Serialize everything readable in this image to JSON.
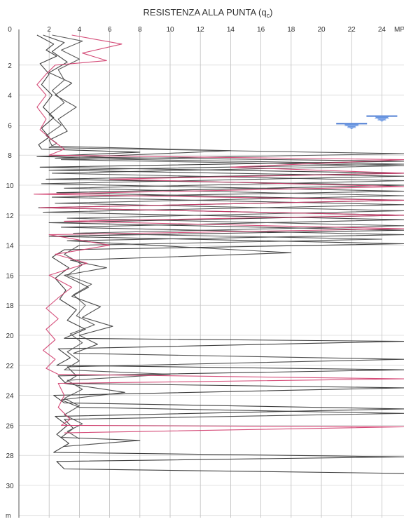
{
  "chart_data": {
    "type": "line",
    "title_main": "RESISTENZA ALLA PUNTA (q",
    "title_sub": "c",
    "title_close": ")",
    "x_unit_label": "MP",
    "y_unit_label": "m",
    "x_ticks": [
      "0",
      "2",
      "4",
      "6",
      "8",
      "10",
      "12",
      "14",
      "16",
      "18",
      "20",
      "22",
      "24"
    ],
    "y_ticks": [
      "2",
      "4",
      "6",
      "8",
      "10",
      "12",
      "14",
      "16",
      "18",
      "20",
      "22",
      "24",
      "26",
      "28",
      "30"
    ],
    "xlim": [
      0,
      25.8
    ],
    "ylim": [
      0,
      32
    ],
    "x_axis_position": "top",
    "y_axis_direction": "depth increasing downward",
    "grid": true,
    "water_table_depths_m": [
      {
        "x": 22,
        "depth": 5.9
      },
      {
        "x": 24,
        "depth": 5.4
      }
    ],
    "series": [
      {
        "color": "#2b2b2b",
        "points": [
          [
            1.2,
            0
          ],
          [
            2.3,
            0.6
          ],
          [
            1.8,
            1.0
          ],
          [
            2.5,
            1.4
          ],
          [
            1.4,
            1.9
          ],
          [
            2.0,
            2.6
          ],
          [
            1.5,
            3.3
          ],
          [
            2.2,
            4.0
          ],
          [
            1.6,
            4.8
          ],
          [
            2.3,
            5.5
          ],
          [
            1.5,
            6.2
          ],
          [
            2.0,
            6.8
          ],
          [
            1.3,
            7.3
          ],
          [
            1.5,
            7.6
          ],
          [
            8,
            7.8
          ],
          [
            1.2,
            8.1
          ],
          [
            25.8,
            8.4
          ],
          [
            1.4,
            8.8
          ],
          [
            25.8,
            9.2
          ],
          [
            1.8,
            9.6
          ],
          [
            25.8,
            10.0
          ],
          [
            2.5,
            10.5
          ],
          [
            25.8,
            11.0
          ],
          [
            1.3,
            11.5
          ],
          [
            25.8,
            12.0
          ],
          [
            2.0,
            12.5
          ],
          [
            25.8,
            13.0
          ],
          [
            2.0,
            13.4
          ],
          [
            25.8,
            13.9
          ],
          [
            3.0,
            14.3
          ],
          [
            2.2,
            14.8
          ],
          [
            3.3,
            15.5
          ],
          [
            2.4,
            16.2
          ],
          [
            3.1,
            17.0
          ],
          [
            2.7,
            17.6
          ],
          [
            3.8,
            18.3
          ],
          [
            3.2,
            19.0
          ],
          [
            4.4,
            19.6
          ],
          [
            3.0,
            20.2
          ],
          [
            25.8,
            20.4
          ],
          [
            2.6,
            20.9
          ],
          [
            3.4,
            21.5
          ],
          [
            2.5,
            22.0
          ],
          [
            25.8,
            22.3
          ],
          [
            2.6,
            22.7
          ],
          [
            3.1,
            23.2
          ],
          [
            25.8,
            23.5
          ],
          [
            2.3,
            24.0
          ],
          [
            3.0,
            24.5
          ],
          [
            25.8,
            24.9
          ],
          [
            2.4,
            25.4
          ],
          [
            3.2,
            26.0
          ],
          [
            2.5,
            26.6
          ],
          [
            3.3,
            27.2
          ],
          [
            2.3,
            27.8
          ],
          [
            25.8,
            28.1
          ],
          [
            2.5,
            28.4
          ],
          [
            3.0,
            28.9
          ],
          [
            25.8,
            29.2
          ]
        ]
      },
      {
        "color": "#3a3a3a",
        "points": [
          [
            1.6,
            0
          ],
          [
            3.0,
            0.5
          ],
          [
            2.2,
            1.1
          ],
          [
            3.2,
            1.8
          ],
          [
            2.0,
            2.5
          ],
          [
            3.5,
            3.2
          ],
          [
            2.4,
            4.0
          ],
          [
            3.8,
            4.8
          ],
          [
            2.6,
            5.6
          ],
          [
            3.2,
            6.4
          ],
          [
            2.0,
            7.0
          ],
          [
            2.2,
            7.4
          ],
          [
            14,
            7.7
          ],
          [
            2.4,
            8.2
          ],
          [
            25.8,
            8.6
          ],
          [
            2.0,
            9.0
          ],
          [
            25.8,
            9.4
          ],
          [
            1.5,
            9.9
          ],
          [
            25.8,
            10.4
          ],
          [
            2.2,
            10.8
          ],
          [
            25.8,
            11.3
          ],
          [
            1.6,
            11.8
          ],
          [
            25.8,
            12.3
          ],
          [
            2.8,
            12.8
          ],
          [
            25.8,
            13.3
          ],
          [
            3.2,
            13.7
          ],
          [
            18,
            14.5
          ],
          [
            3.4,
            15.0
          ],
          [
            5.8,
            15.5
          ],
          [
            3.0,
            16.0
          ],
          [
            4.6,
            16.8
          ],
          [
            3.5,
            17.4
          ],
          [
            5.4,
            18.1
          ],
          [
            4.2,
            18.8
          ],
          [
            6.2,
            19.4
          ],
          [
            4.0,
            20.0
          ],
          [
            5.2,
            20.6
          ],
          [
            3.6,
            21.2
          ],
          [
            25.8,
            21.6
          ],
          [
            3.2,
            22.1
          ],
          [
            3.8,
            22.7
          ],
          [
            3.0,
            23.2
          ],
          [
            7,
            23.8
          ],
          [
            2.8,
            24.3
          ],
          [
            4.0,
            24.8
          ],
          [
            25.8,
            25.2
          ],
          [
            3.0,
            25.6
          ],
          [
            3.6,
            26.2
          ],
          [
            2.8,
            26.8
          ],
          [
            8,
            27.0
          ],
          [
            3.0,
            27.4
          ]
        ]
      },
      {
        "color": "#4a4a4a",
        "points": [
          [
            2.2,
            0
          ],
          [
            4.2,
            0.4
          ],
          [
            2.8,
            1.0
          ],
          [
            4.0,
            1.6
          ],
          [
            2.6,
            2.3
          ],
          [
            3.0,
            3.0
          ],
          [
            2.2,
            3.7
          ],
          [
            3.0,
            4.5
          ],
          [
            2.0,
            5.3
          ],
          [
            2.8,
            6.0
          ],
          [
            1.8,
            6.7
          ],
          [
            2.5,
            7.2
          ],
          [
            2.0,
            7.5
          ],
          [
            25.8,
            7.9
          ],
          [
            2.8,
            8.3
          ],
          [
            25.8,
            8.7
          ],
          [
            2.2,
            9.2
          ],
          [
            25.8,
            9.7
          ],
          [
            3.0,
            10.2
          ],
          [
            25.8,
            10.7
          ],
          [
            2.4,
            11.2
          ],
          [
            25.8,
            11.7
          ],
          [
            3.2,
            12.2
          ],
          [
            25.8,
            12.7
          ],
          [
            3.6,
            13.2
          ],
          [
            24,
            13.6
          ],
          [
            4.0,
            14.0
          ],
          [
            3.0,
            14.6
          ],
          [
            4.2,
            15.3
          ],
          [
            3.2,
            16.0
          ],
          [
            4.8,
            16.6
          ],
          [
            3.6,
            17.3
          ],
          [
            4.4,
            18.0
          ],
          [
            3.8,
            18.7
          ],
          [
            5.0,
            19.3
          ],
          [
            3.4,
            19.9
          ],
          [
            4.2,
            20.5
          ],
          [
            3.2,
            21.1
          ],
          [
            4.0,
            21.7
          ],
          [
            3.0,
            22.3
          ],
          [
            10,
            22.6
          ],
          [
            3.2,
            23.0
          ],
          [
            4.2,
            23.6
          ],
          [
            3.0,
            24.2
          ],
          [
            4.0,
            24.7
          ],
          [
            3.0,
            25.3
          ],
          [
            4.2,
            25.9
          ],
          [
            3.2,
            26.4
          ],
          [
            4.0,
            26.9
          ]
        ]
      },
      {
        "color": "#d03a6a",
        "points": [
          [
            3.5,
            0
          ],
          [
            6.8,
            0.6
          ],
          [
            4.2,
            1.2
          ],
          [
            5.8,
            1.7
          ],
          [
            2.4,
            2.0
          ],
          [
            1.8,
            2.6
          ],
          [
            1.2,
            3.3
          ],
          [
            1.8,
            4.0
          ],
          [
            1.2,
            4.8
          ],
          [
            1.8,
            5.6
          ],
          [
            1.4,
            6.3
          ],
          [
            2.2,
            7.0
          ],
          [
            3.0,
            7.6
          ],
          [
            2.0,
            8.0
          ],
          [
            25.8,
            8.3
          ],
          [
            14,
            8.8
          ],
          [
            25.8,
            9.2
          ],
          [
            6,
            9.6
          ],
          [
            25.8,
            10.1
          ],
          [
            1.0,
            10.6
          ],
          [
            25.8,
            11.0
          ],
          [
            1.4,
            11.5
          ],
          [
            25.8,
            12.0
          ],
          [
            3.0,
            12.4
          ],
          [
            25.8,
            12.9
          ],
          [
            2.0,
            13.3
          ],
          [
            6.0,
            14.0
          ],
          [
            2.4,
            14.6
          ],
          [
            4.5,
            15.2
          ],
          [
            2.0,
            16.0
          ],
          [
            3.5,
            16.8
          ],
          [
            2.6,
            17.5
          ],
          [
            1.8,
            18.2
          ],
          [
            2.6,
            18.9
          ],
          [
            1.8,
            19.6
          ],
          [
            2.4,
            20.3
          ],
          [
            1.6,
            21.0
          ],
          [
            2.4,
            21.6
          ],
          [
            1.8,
            22.2
          ],
          [
            2.6,
            22.6
          ],
          [
            25.8,
            22.9
          ],
          [
            2.6,
            23.2
          ],
          [
            3.0,
            24.0
          ],
          [
            2.6,
            24.8
          ],
          [
            3.4,
            25.6
          ],
          [
            2.8,
            26.0
          ],
          [
            25.8,
            26.1
          ],
          [
            3.0,
            26.5
          ]
        ]
      }
    ]
  }
}
